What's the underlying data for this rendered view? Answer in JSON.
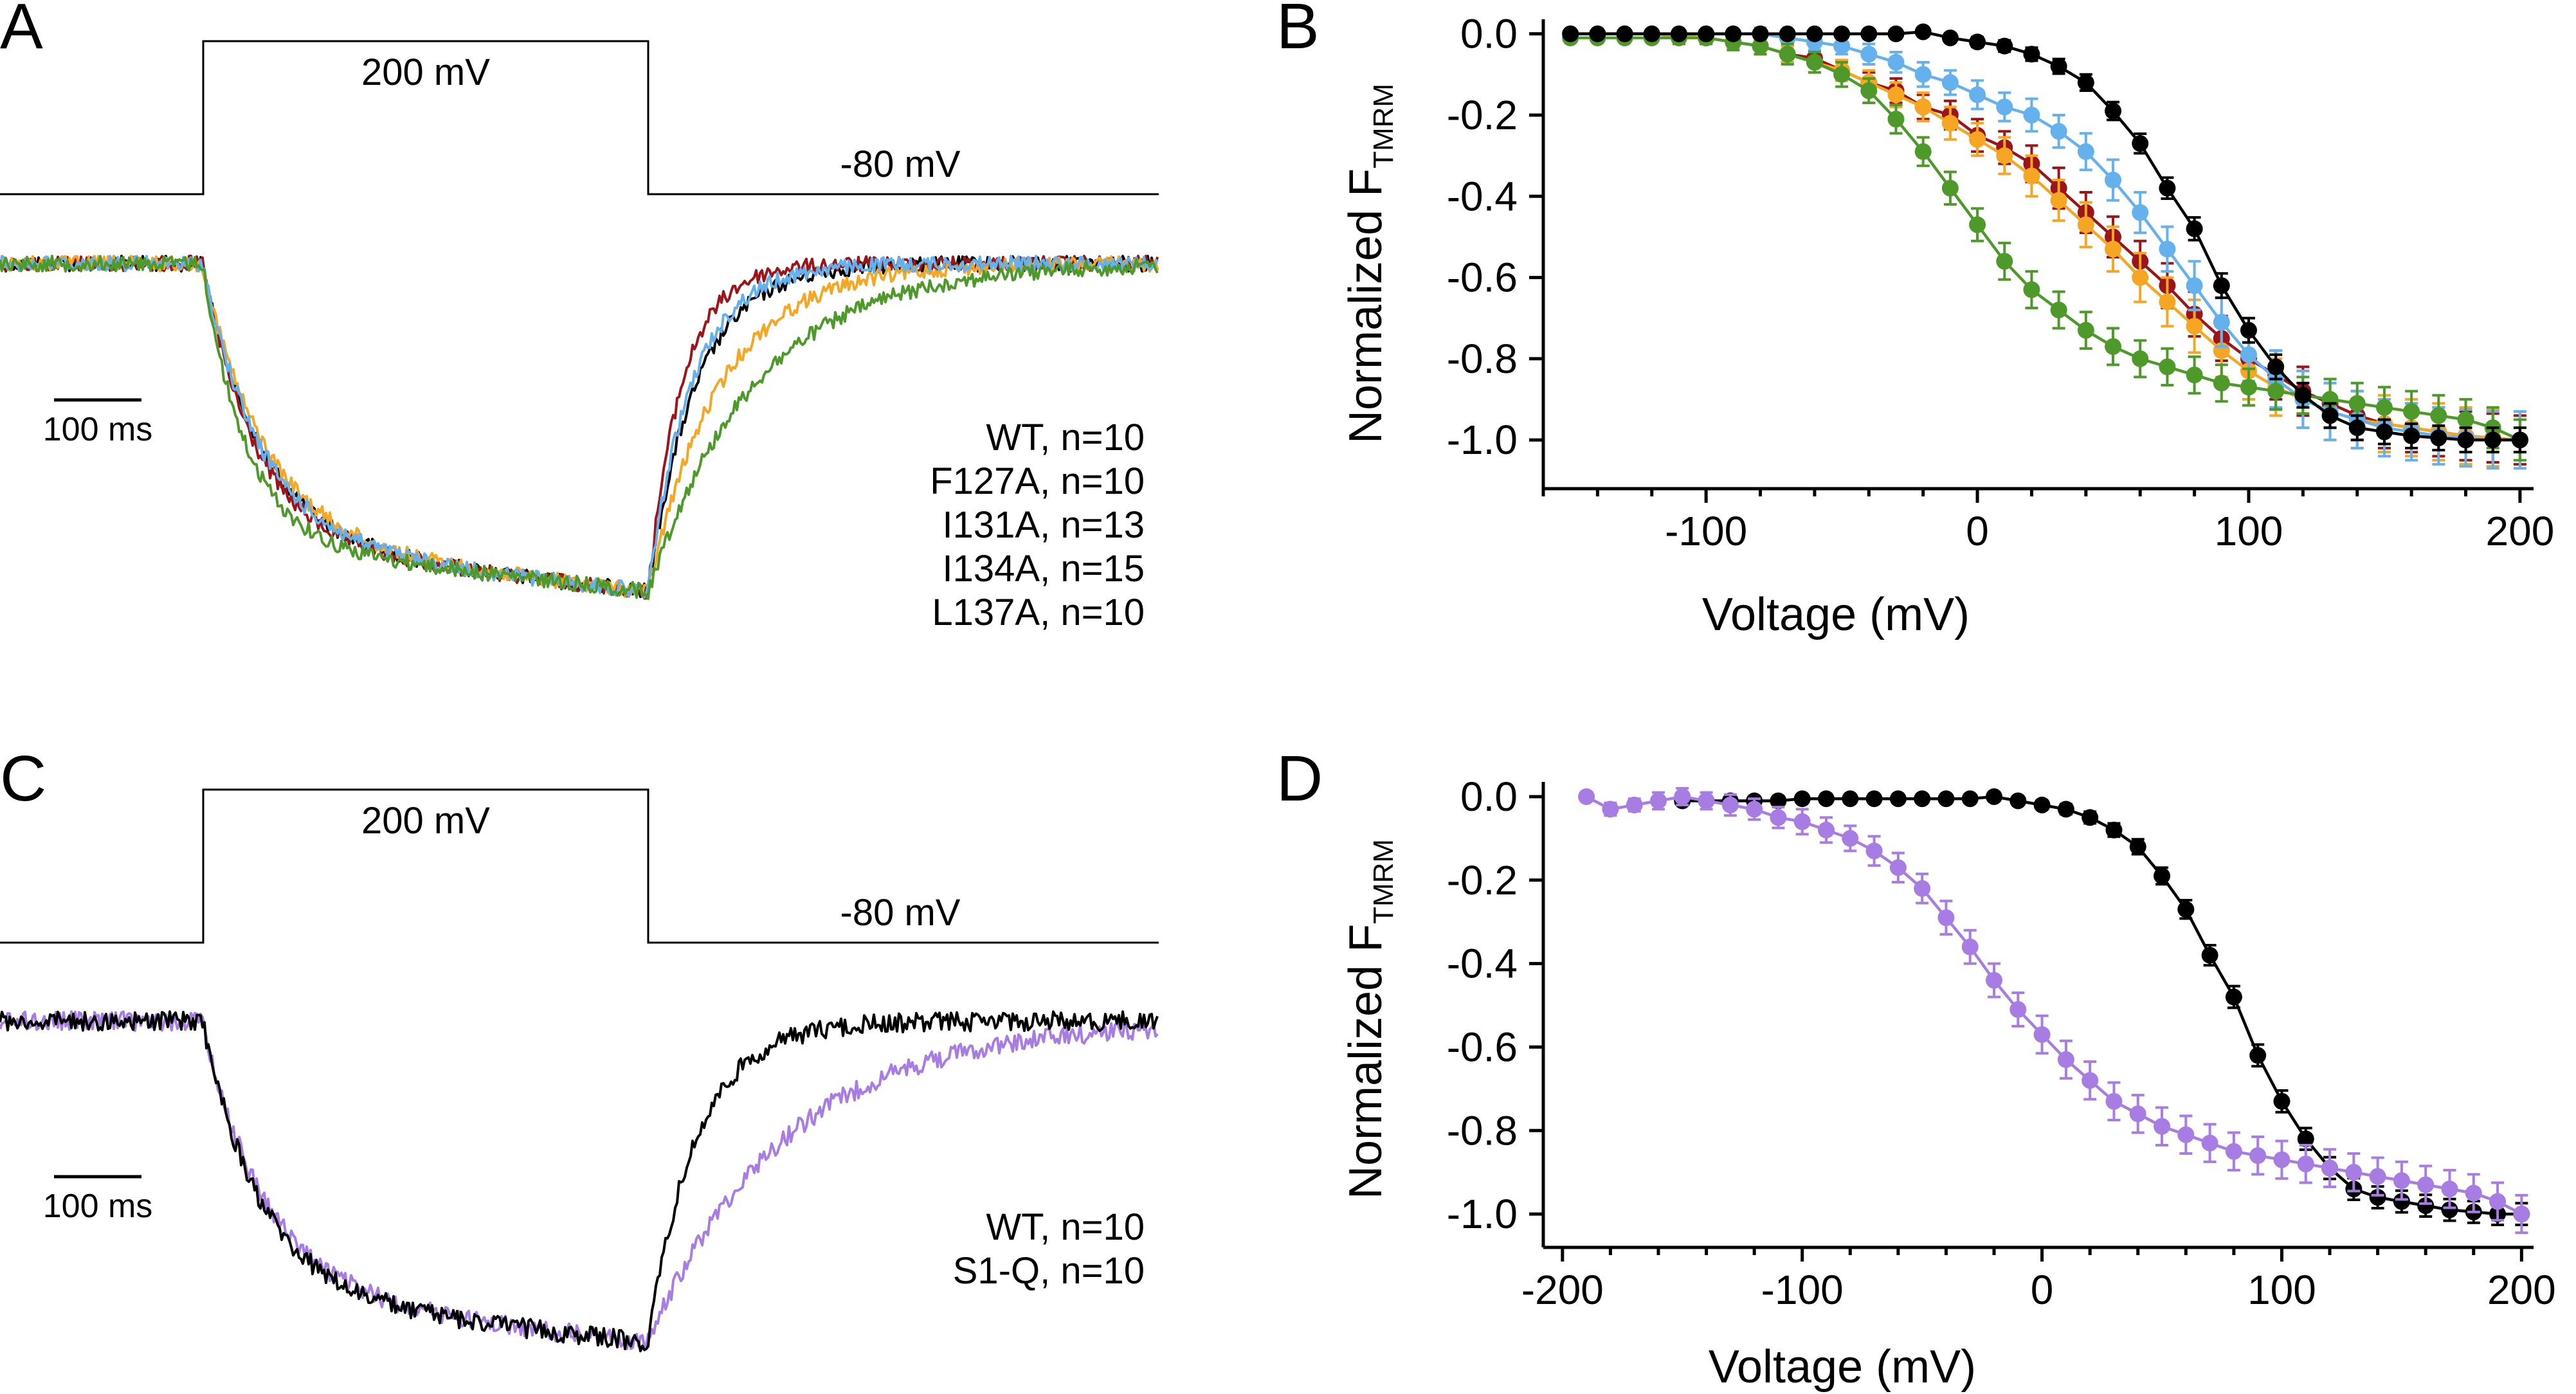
{
  "colors": {
    "WT": "#000000",
    "F127A": "#9c1518",
    "I131A": "#f5a623",
    "I134A": "#64b1ee",
    "L137A": "#4d9a2a",
    "S1Q": "#a77de3"
  },
  "panels": [
    {
      "label": "A",
      "protocol": {
        "step_label": "200 mV",
        "hold_label": "-80 mV"
      },
      "scale_bar_label": "100 ms",
      "legend": [
        {
          "key": "WT",
          "text": "WT, n=10"
        },
        {
          "key": "F127A",
          "text": "F127A, n=10"
        },
        {
          "key": "I131A",
          "text": "I131A, n=13"
        },
        {
          "key": "I134A",
          "text": "I134A, n=15"
        },
        {
          "key": "L137A",
          "text": "L137A, n=10"
        }
      ]
    },
    {
      "label": "B",
      "xlabel": "Voltage (mV)",
      "ylabel_main": "Normalized F",
      "ylabel_sub": "TMRM"
    },
    {
      "label": "C",
      "protocol": {
        "step_label": "200 mV",
        "hold_label": "-80 mV"
      },
      "scale_bar_label": "100 ms",
      "legend": [
        {
          "key": "WT",
          "text": "WT, n=10"
        },
        {
          "key": "S1Q",
          "text": "S1-Q, n=10"
        }
      ]
    },
    {
      "label": "D",
      "xlabel": "Voltage (mV)",
      "ylabel_main": "Normalized F",
      "ylabel_sub": "TMRM"
    }
  ],
  "chart_data": [
    {
      "panel": "A",
      "type": "line",
      "description_of_axes": "fluorescence trace vs time; no printed axes",
      "protocol_mV": {
        "holding": -80,
        "step": 200
      },
      "series": [
        {
          "name": "WT, n=10",
          "key": "WT",
          "steady_on": -1.0,
          "tau_on_ms": 60,
          "tau_off_ms": 50
        },
        {
          "name": "F127A, n=10",
          "key": "F127A",
          "steady_on": -1.0,
          "tau_on_ms": 55,
          "tau_off_ms": 35
        },
        {
          "name": "I131A, n=13",
          "key": "I131A",
          "steady_on": -1.0,
          "tau_on_ms": 65,
          "tau_off_ms": 75
        },
        {
          "name": "I134A, n=15",
          "key": "I134A",
          "steady_on": -1.0,
          "tau_on_ms": 60,
          "tau_off_ms": 45
        },
        {
          "name": "L137A, n=10",
          "key": "L137A",
          "steady_on": -1.0,
          "tau_on_ms": 45,
          "tau_off_ms": 110
        }
      ]
    },
    {
      "panel": "B",
      "type": "scatter",
      "xlabel": "Voltage (mV)",
      "ylabel": "Normalized F TMRM",
      "xlim": [
        -160,
        205
      ],
      "ylim": [
        -1.12,
        0.02
      ],
      "xticks": [
        -100,
        0,
        100,
        200
      ],
      "yticks": [
        0.0,
        -0.2,
        -0.4,
        -0.6,
        -0.8,
        -1.0
      ],
      "series": [
        {
          "name": "WT, n=10",
          "key": "WT",
          "x": [
            -150,
            -140,
            -130,
            -120,
            -110,
            -100,
            -90,
            -80,
            -70,
            -60,
            -50,
            -40,
            -30,
            -20,
            -10,
            0,
            10,
            20,
            30,
            40,
            50,
            60,
            70,
            80,
            90,
            100,
            110,
            120,
            130,
            140,
            150,
            160,
            170,
            180,
            190,
            200
          ],
          "y": [
            0,
            0,
            0,
            0,
            0,
            0,
            0,
            0,
            0,
            0,
            0,
            0,
            0,
            0.005,
            -0.01,
            -0.02,
            -0.03,
            -0.05,
            -0.08,
            -0.12,
            -0.19,
            -0.27,
            -0.38,
            -0.48,
            -0.62,
            -0.73,
            -0.82,
            -0.89,
            -0.94,
            -0.97,
            -0.98,
            -0.99,
            -0.995,
            -1.0,
            -1.0,
            -1.0
          ],
          "err": [
            0.005,
            0.005,
            0.005,
            0.005,
            0.005,
            0.005,
            0.005,
            0.005,
            0.005,
            0.005,
            0.005,
            0.005,
            0.008,
            0.008,
            0.01,
            0.012,
            0.014,
            0.016,
            0.018,
            0.02,
            0.022,
            0.024,
            0.026,
            0.028,
            0.03,
            0.03,
            0.03,
            0.03,
            0.03,
            0.03,
            0.03,
            0.03,
            0.03,
            0.03,
            0.03,
            0.03
          ]
        },
        {
          "name": "F127A, n=10",
          "key": "F127A",
          "x": [
            -150,
            -140,
            -130,
            -120,
            -110,
            -100,
            -90,
            -80,
            -70,
            -60,
            -50,
            -40,
            -30,
            -20,
            -10,
            0,
            10,
            20,
            30,
            40,
            50,
            60,
            70,
            80,
            90,
            100,
            110,
            120,
            130,
            140,
            150,
            160,
            170,
            180,
            190,
            200
          ],
          "y": [
            0,
            0,
            0,
            0,
            -0.005,
            -0.01,
            -0.02,
            -0.03,
            -0.05,
            -0.06,
            -0.09,
            -0.12,
            -0.14,
            -0.18,
            -0.2,
            -0.25,
            -0.28,
            -0.32,
            -0.38,
            -0.44,
            -0.5,
            -0.56,
            -0.62,
            -0.69,
            -0.75,
            -0.8,
            -0.84,
            -0.88,
            -0.91,
            -0.94,
            -0.96,
            -0.97,
            -0.98,
            -0.99,
            -0.995,
            -1.0
          ],
          "err": [
            0.01,
            0.01,
            0.01,
            0.01,
            0.01,
            0.015,
            0.015,
            0.02,
            0.02,
            0.02,
            0.025,
            0.025,
            0.03,
            0.03,
            0.035,
            0.04,
            0.04,
            0.045,
            0.05,
            0.05,
            0.05,
            0.05,
            0.055,
            0.055,
            0.055,
            0.06,
            0.06,
            0.06,
            0.06,
            0.06,
            0.06,
            0.06,
            0.06,
            0.06,
            0.06,
            0.06
          ]
        },
        {
          "name": "I131A, n=13",
          "key": "I131A",
          "x": [
            -150,
            -140,
            -130,
            -120,
            -110,
            -100,
            -90,
            -80,
            -70,
            -60,
            -50,
            -40,
            -30,
            -20,
            -10,
            0,
            10,
            20,
            30,
            40,
            50,
            60,
            70,
            80,
            90,
            100,
            110,
            120,
            130,
            140,
            150,
            160,
            170,
            180,
            190,
            200
          ],
          "y": [
            0,
            0,
            0,
            0,
            -0.005,
            -0.01,
            -0.02,
            -0.03,
            -0.05,
            -0.07,
            -0.09,
            -0.12,
            -0.15,
            -0.18,
            -0.22,
            -0.26,
            -0.3,
            -0.35,
            -0.41,
            -0.47,
            -0.53,
            -0.6,
            -0.66,
            -0.72,
            -0.78,
            -0.83,
            -0.87,
            -0.9,
            -0.93,
            -0.95,
            -0.96,
            -0.97,
            -0.98,
            -0.99,
            -0.995,
            -1.0
          ],
          "err": [
            0.01,
            0.01,
            0.01,
            0.01,
            0.01,
            0.015,
            0.015,
            0.02,
            0.02,
            0.025,
            0.025,
            0.03,
            0.03,
            0.035,
            0.04,
            0.04,
            0.045,
            0.05,
            0.05,
            0.055,
            0.055,
            0.06,
            0.06,
            0.065,
            0.065,
            0.07,
            0.07,
            0.07,
            0.07,
            0.07,
            0.07,
            0.07,
            0.07,
            0.07,
            0.07,
            0.07
          ]
        },
        {
          "name": "I134A, n=15",
          "key": "I134A",
          "x": [
            -150,
            -140,
            -130,
            -120,
            -110,
            -100,
            -90,
            -80,
            -70,
            -60,
            -50,
            -40,
            -30,
            -20,
            -10,
            0,
            10,
            20,
            30,
            40,
            50,
            60,
            70,
            80,
            90,
            100,
            110,
            120,
            130,
            140,
            150,
            160,
            170,
            180,
            190,
            200
          ],
          "y": [
            0,
            0,
            0,
            0,
            0,
            0,
            0,
            0,
            -0.01,
            -0.02,
            -0.03,
            -0.05,
            -0.07,
            -0.1,
            -0.12,
            -0.15,
            -0.18,
            -0.2,
            -0.24,
            -0.29,
            -0.36,
            -0.44,
            -0.53,
            -0.62,
            -0.71,
            -0.79,
            -0.85,
            -0.9,
            -0.93,
            -0.95,
            -0.97,
            -0.98,
            -0.99,
            -0.995,
            -1.0,
            -1.0
          ],
          "err": [
            0.01,
            0.01,
            0.01,
            0.01,
            0.01,
            0.01,
            0.01,
            0.015,
            0.015,
            0.02,
            0.02,
            0.025,
            0.025,
            0.03,
            0.03,
            0.035,
            0.035,
            0.04,
            0.04,
            0.045,
            0.05,
            0.05,
            0.055,
            0.06,
            0.06,
            0.065,
            0.07,
            0.07,
            0.07,
            0.07,
            0.07,
            0.07,
            0.07,
            0.07,
            0.07,
            0.07
          ]
        },
        {
          "name": "L137A, n=10",
          "key": "L137A",
          "x": [
            -150,
            -140,
            -130,
            -120,
            -110,
            -100,
            -90,
            -80,
            -70,
            -60,
            -50,
            -40,
            -30,
            -20,
            -10,
            0,
            10,
            20,
            30,
            40,
            50,
            60,
            70,
            80,
            90,
            100,
            110,
            120,
            130,
            140,
            150,
            160,
            170,
            180,
            190,
            200
          ],
          "y": [
            -0.01,
            -0.01,
            -0.01,
            -0.01,
            -0.01,
            -0.01,
            -0.02,
            -0.03,
            -0.05,
            -0.07,
            -0.1,
            -0.14,
            -0.21,
            -0.29,
            -0.38,
            -0.47,
            -0.56,
            -0.63,
            -0.68,
            -0.73,
            -0.77,
            -0.8,
            -0.82,
            -0.84,
            -0.86,
            -0.87,
            -0.88,
            -0.89,
            -0.9,
            -0.91,
            -0.92,
            -0.93,
            -0.94,
            -0.95,
            -0.97,
            -1.0
          ],
          "err": [
            0.01,
            0.01,
            0.01,
            0.01,
            0.015,
            0.015,
            0.02,
            0.02,
            0.025,
            0.025,
            0.03,
            0.03,
            0.035,
            0.035,
            0.04,
            0.04,
            0.045,
            0.045,
            0.045,
            0.045,
            0.045,
            0.045,
            0.045,
            0.045,
            0.045,
            0.045,
            0.045,
            0.045,
            0.05,
            0.05,
            0.05,
            0.05,
            0.05,
            0.05,
            0.05,
            0.05
          ]
        }
      ]
    },
    {
      "panel": "C",
      "type": "line",
      "description_of_axes": "fluorescence trace vs time; no printed axes",
      "protocol_mV": {
        "holding": -80,
        "step": 200
      },
      "series": [
        {
          "name": "WT, n=10",
          "key": "WT",
          "steady_on": -1.0,
          "tau_on_ms": 60,
          "tau_off_ms": 50
        },
        {
          "name": "S1-Q, n=10",
          "key": "S1Q",
          "steady_on": -1.0,
          "tau_on_ms": 65,
          "tau_off_ms": 140
        }
      ]
    },
    {
      "panel": "D",
      "type": "scatter",
      "xlabel": "Voltage (mV)",
      "ylabel": "Normalized F TMRM",
      "xlim": [
        -208,
        205
      ],
      "ylim": [
        -1.08,
        0.02
      ],
      "xticks": [
        -200,
        -100,
        0,
        100,
        200
      ],
      "yticks": [
        0.0,
        -0.2,
        -0.4,
        -0.6,
        -0.8,
        -1.0
      ],
      "series": [
        {
          "name": "WT, n=10",
          "key": "WT",
          "x": [
            -150,
            -140,
            -130,
            -120,
            -110,
            -100,
            -90,
            -80,
            -70,
            -60,
            -50,
            -40,
            -30,
            -20,
            -10,
            0,
            10,
            20,
            30,
            40,
            50,
            60,
            70,
            80,
            90,
            100,
            110,
            120,
            130,
            140,
            150,
            160,
            170,
            180,
            190,
            200
          ],
          "y": [
            -0.01,
            -0.01,
            -0.01,
            -0.01,
            -0.01,
            -0.005,
            -0.005,
            -0.005,
            -0.005,
            -0.005,
            -0.005,
            -0.005,
            -0.005,
            0.0,
            -0.01,
            -0.02,
            -0.03,
            -0.05,
            -0.08,
            -0.12,
            -0.19,
            -0.27,
            -0.38,
            -0.48,
            -0.62,
            -0.73,
            -0.82,
            -0.89,
            -0.94,
            -0.96,
            -0.97,
            -0.98,
            -0.99,
            -0.995,
            -1.0,
            -1.0
          ],
          "err": [
            0.005,
            0.005,
            0.005,
            0.005,
            0.005,
            0.005,
            0.005,
            0.005,
            0.005,
            0.005,
            0.005,
            0.005,
            0.005,
            0.005,
            0.008,
            0.01,
            0.012,
            0.014,
            0.016,
            0.018,
            0.02,
            0.022,
            0.024,
            0.026,
            0.026,
            0.026,
            0.026,
            0.026,
            0.026,
            0.026,
            0.026,
            0.026,
            0.026,
            0.026,
            0.026,
            0.026
          ]
        },
        {
          "name": "S1-Q, n=10",
          "key": "S1Q",
          "x": [
            -190,
            -180,
            -170,
            -160,
            -150,
            -140,
            -130,
            -120,
            -110,
            -100,
            -90,
            -80,
            -70,
            -60,
            -50,
            -40,
            -30,
            -20,
            -10,
            0,
            10,
            20,
            30,
            40,
            50,
            60,
            70,
            80,
            90,
            100,
            110,
            120,
            130,
            140,
            150,
            160,
            170,
            180,
            190,
            200
          ],
          "y": [
            0.0,
            -0.03,
            -0.02,
            -0.01,
            0.0,
            -0.01,
            -0.02,
            -0.03,
            -0.05,
            -0.06,
            -0.08,
            -0.1,
            -0.13,
            -0.17,
            -0.22,
            -0.29,
            -0.36,
            -0.44,
            -0.51,
            -0.57,
            -0.63,
            -0.68,
            -0.73,
            -0.76,
            -0.79,
            -0.81,
            -0.83,
            -0.85,
            -0.86,
            -0.87,
            -0.88,
            -0.89,
            -0.9,
            -0.91,
            -0.92,
            -0.93,
            -0.94,
            -0.95,
            -0.97,
            -1.0
          ],
          "err": [
            0.01,
            0.015,
            0.015,
            0.02,
            0.02,
            0.02,
            0.025,
            0.025,
            0.025,
            0.03,
            0.03,
            0.03,
            0.035,
            0.035,
            0.035,
            0.04,
            0.04,
            0.04,
            0.04,
            0.045,
            0.045,
            0.045,
            0.045,
            0.045,
            0.045,
            0.045,
            0.045,
            0.045,
            0.045,
            0.045,
            0.045,
            0.045,
            0.045,
            0.045,
            0.045,
            0.045,
            0.045,
            0.045,
            0.045,
            0.045
          ]
        }
      ],
      "fits": [
        "WT",
        "S1Q"
      ]
    }
  ]
}
